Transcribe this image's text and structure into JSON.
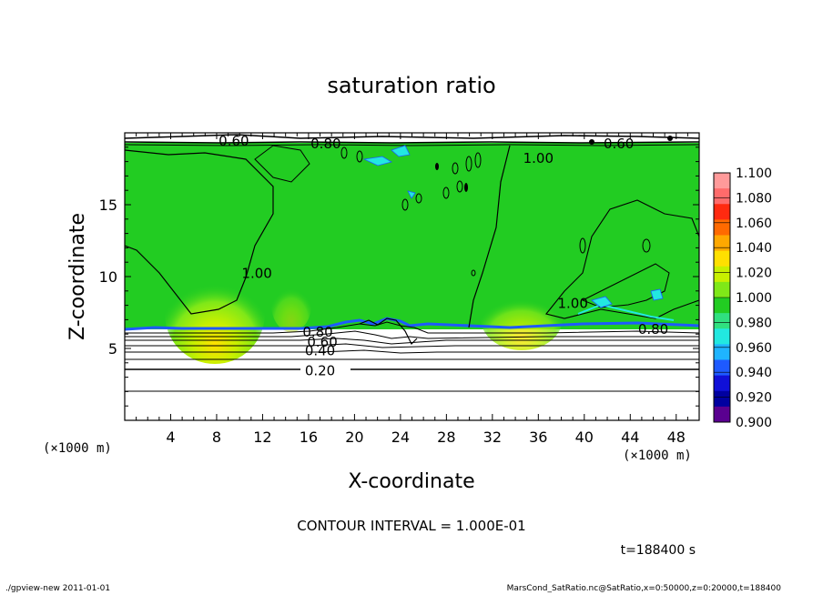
{
  "chart_data": {
    "type": "heatmap",
    "title": "saturation ratio",
    "xlabel": "X-coordinate",
    "ylabel": "Z-coordinate",
    "x_unit_left": "(×1000 m)",
    "x_unit_right": "(×1000 m)",
    "y_unit": "(×1000 m)",
    "xlim": [
      0,
      50
    ],
    "ylim": [
      0,
      20
    ],
    "x_ticks": [
      4,
      8,
      12,
      16,
      20,
      24,
      28,
      32,
      36,
      40,
      44,
      48
    ],
    "y_ticks": [
      5,
      10,
      15
    ],
    "colorbar": {
      "levels": [
        "1.100",
        "1.080",
        "1.060",
        "1.040",
        "1.020",
        "1.000",
        "0.980",
        "0.960",
        "0.940",
        "0.920",
        "0.900"
      ],
      "colors": [
        "#ff9a9a",
        "#ff6b6b",
        "#ff2a10",
        "#ff6a00",
        "#ffa800",
        "#ffe000",
        "#c8f000",
        "#7fe818",
        "#22cc22",
        "#30e080",
        "#22e8e0",
        "#1fb4ff",
        "#1e5aff",
        "#1010d8",
        "#0000a0",
        "#5a0090"
      ]
    },
    "contour_labels": [
      {
        "text": "0.60",
        "x": 9.5,
        "z": 19.5
      },
      {
        "text": "0.80",
        "x": 17.5,
        "z": 19.3
      },
      {
        "text": "1.00",
        "x": 36,
        "z": 18.3
      },
      {
        "text": "0.60",
        "x": 43,
        "z": 19.3
      },
      {
        "text": "1.00",
        "x": 11.5,
        "z": 10.3
      },
      {
        "text": "1.00",
        "x": 39,
        "z": 8.2
      },
      {
        "text": "0.80",
        "x": 16.8,
        "z": 6.2
      },
      {
        "text": "0.60",
        "x": 17.2,
        "z": 5.5
      },
      {
        "text": "0.40",
        "x": 17.0,
        "z": 4.9
      },
      {
        "text": "0.20",
        "x": 17.0,
        "z": 3.5
      },
      {
        "text": "0.80",
        "x": 46.0,
        "z": 6.4
      }
    ],
    "contour_interval": "CONTOUR INTERVAL = 1.000E-01",
    "time_label": "t=188400 s"
  },
  "footer": {
    "left": "./gpview-new  2011-01-01",
    "right": "MarsCond_SatRatio.nc@SatRatio,x=0:50000,z=0:20000,t=188400"
  }
}
